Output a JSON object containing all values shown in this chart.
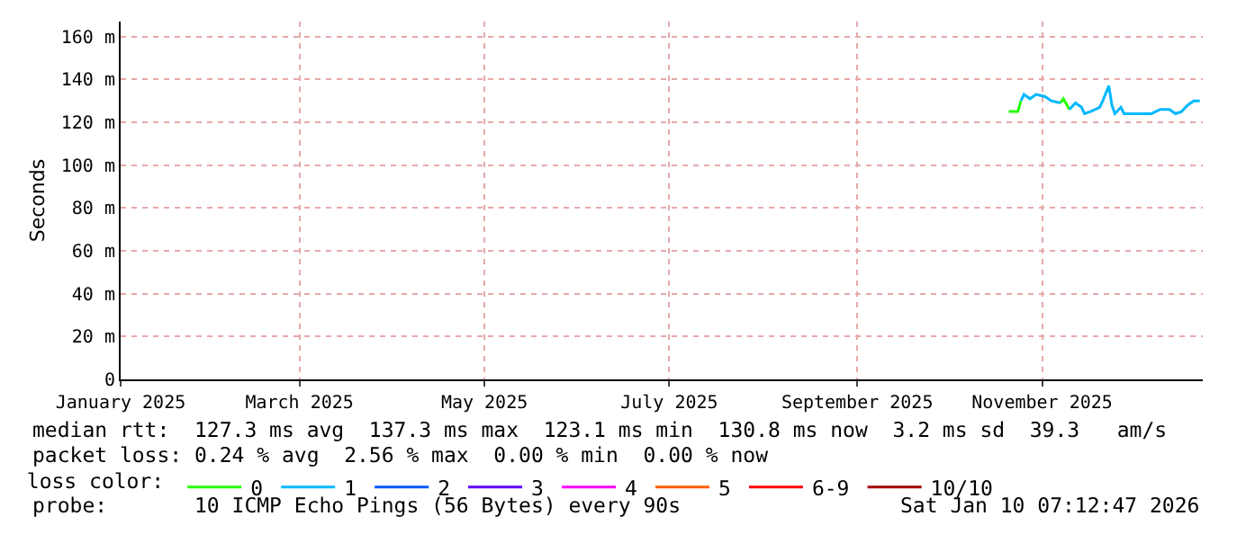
{
  "chart_data": {
    "type": "line",
    "ylabel": "Seconds",
    "legend_title": "loss color:",
    "x": [
      "2025-10-21",
      "2025-10-24",
      "2025-10-25",
      "2025-10-26",
      "2025-10-28",
      "2025-10-30",
      "2025-11-02",
      "2025-11-04",
      "2025-11-07",
      "2025-11-08",
      "2025-11-10",
      "2025-11-12",
      "2025-11-14",
      "2025-11-15",
      "2025-11-17",
      "2025-11-20",
      "2025-11-21",
      "2025-11-23",
      "2025-11-24",
      "2025-11-25",
      "2025-11-27",
      "2025-11-28",
      "2025-12-01",
      "2025-12-04",
      "2025-12-07",
      "2025-12-10",
      "2025-12-13",
      "2025-12-15",
      "2025-12-17",
      "2025-12-19",
      "2025-12-21",
      "2025-12-23"
    ],
    "series": [
      {
        "name": "0",
        "color": "#26ff00",
        "values": [
          125,
          125,
          130,
          null,
          null,
          null,
          null,
          null,
          129,
          131,
          126,
          null,
          null,
          null,
          null,
          null,
          null,
          null,
          null,
          null,
          null,
          null,
          null,
          null,
          null,
          null,
          null,
          null,
          null,
          null,
          null,
          null
        ]
      },
      {
        "name": "1",
        "color": "#00b8ff",
        "values": [
          null,
          null,
          130,
          133,
          131,
          133,
          132,
          130,
          129,
          null,
          126,
          129,
          127,
          124,
          125,
          127,
          130,
          137,
          128,
          124,
          127,
          124,
          124,
          124,
          124,
          126,
          126,
          124,
          125,
          128,
          130,
          130
        ]
      },
      {
        "name": "2",
        "color": "#0059ff",
        "values": [
          null,
          null,
          null,
          null,
          null,
          null,
          null,
          null,
          null,
          null,
          null,
          null,
          null,
          null,
          null,
          null,
          null,
          null,
          null,
          null,
          null,
          null,
          null,
          null,
          null,
          null,
          null,
          null,
          null,
          null,
          null,
          null
        ]
      },
      {
        "name": "3",
        "color": "#5e00ff",
        "values": [
          null,
          null,
          null,
          null,
          null,
          null,
          null,
          null,
          null,
          null,
          null,
          null,
          null,
          null,
          null,
          null,
          null,
          null,
          null,
          null,
          null,
          null,
          null,
          null,
          null,
          null,
          null,
          null,
          null,
          null,
          null,
          null
        ]
      },
      {
        "name": "4",
        "color": "#ff00ff",
        "values": [
          null,
          null,
          null,
          null,
          null,
          null,
          null,
          null,
          null,
          null,
          null,
          null,
          null,
          null,
          null,
          null,
          null,
          null,
          null,
          null,
          null,
          null,
          null,
          null,
          null,
          null,
          null,
          null,
          null,
          null,
          null,
          null
        ]
      },
      {
        "name": "5",
        "color": "#ff5e00",
        "values": [
          null,
          null,
          null,
          null,
          null,
          null,
          null,
          null,
          null,
          null,
          null,
          null,
          null,
          null,
          null,
          null,
          null,
          null,
          null,
          null,
          null,
          null,
          null,
          null,
          null,
          null,
          null,
          null,
          null,
          null,
          null,
          null
        ]
      },
      {
        "name": "6-9",
        "color": "#ff0000",
        "values": [
          null,
          null,
          null,
          null,
          null,
          null,
          null,
          null,
          null,
          null,
          null,
          null,
          null,
          null,
          null,
          null,
          null,
          null,
          null,
          null,
          null,
          null,
          null,
          null,
          null,
          null,
          null,
          null,
          null,
          null,
          null,
          null
        ]
      },
      {
        "name": "10/10",
        "color": "#a10000",
        "values": [
          null,
          null,
          null,
          null,
          null,
          null,
          null,
          null,
          null,
          null,
          null,
          null,
          null,
          null,
          null,
          null,
          null,
          null,
          null,
          null,
          null,
          null,
          null,
          null,
          null,
          null,
          null,
          null,
          null,
          null,
          null,
          null
        ]
      }
    ],
    "xlim": [
      "2025-01-01",
      "2025-12-24"
    ],
    "xticks": [
      {
        "value": "2025-01-01",
        "label": "January 2025"
      },
      {
        "value": "2025-03-01",
        "label": "March 2025"
      },
      {
        "value": "2025-05-01",
        "label": "May 2025"
      },
      {
        "value": "2025-07-01",
        "label": "July 2025"
      },
      {
        "value": "2025-09-01",
        "label": "September 2025"
      },
      {
        "value": "2025-11-01",
        "label": "November 2025"
      }
    ],
    "ylim": [
      0,
      167
    ],
    "yticks": [
      0,
      {
        "value": 20,
        "label": "20 m"
      },
      {
        "value": 40,
        "label": "40 m"
      },
      {
        "value": 60,
        "label": "60 m"
      },
      {
        "value": 80,
        "label": "80 m"
      },
      {
        "value": 100,
        "label": "100 m"
      },
      {
        "value": 120,
        "label": "120 m"
      },
      {
        "value": 140,
        "label": "140 m"
      },
      {
        "value": 160,
        "label": "160 m"
      }
    ],
    "grid": true,
    "legend": "bottom",
    "line_style": "solid",
    "marker": "none",
    "annotations": [
      "median rtt:  127.3 ms avg  137.3 ms max  123.1 ms min  130.8 ms now  3.2 ms sd  39.3   am/s",
      "packet loss: 0.24 % avg  2.56 % max  0.00 % min  0.00 % now",
      "probe:       10 ICMP Echo Pings (56 Bytes) every 90s",
      "Sat Jan 10 07:12:47 2026"
    ]
  }
}
